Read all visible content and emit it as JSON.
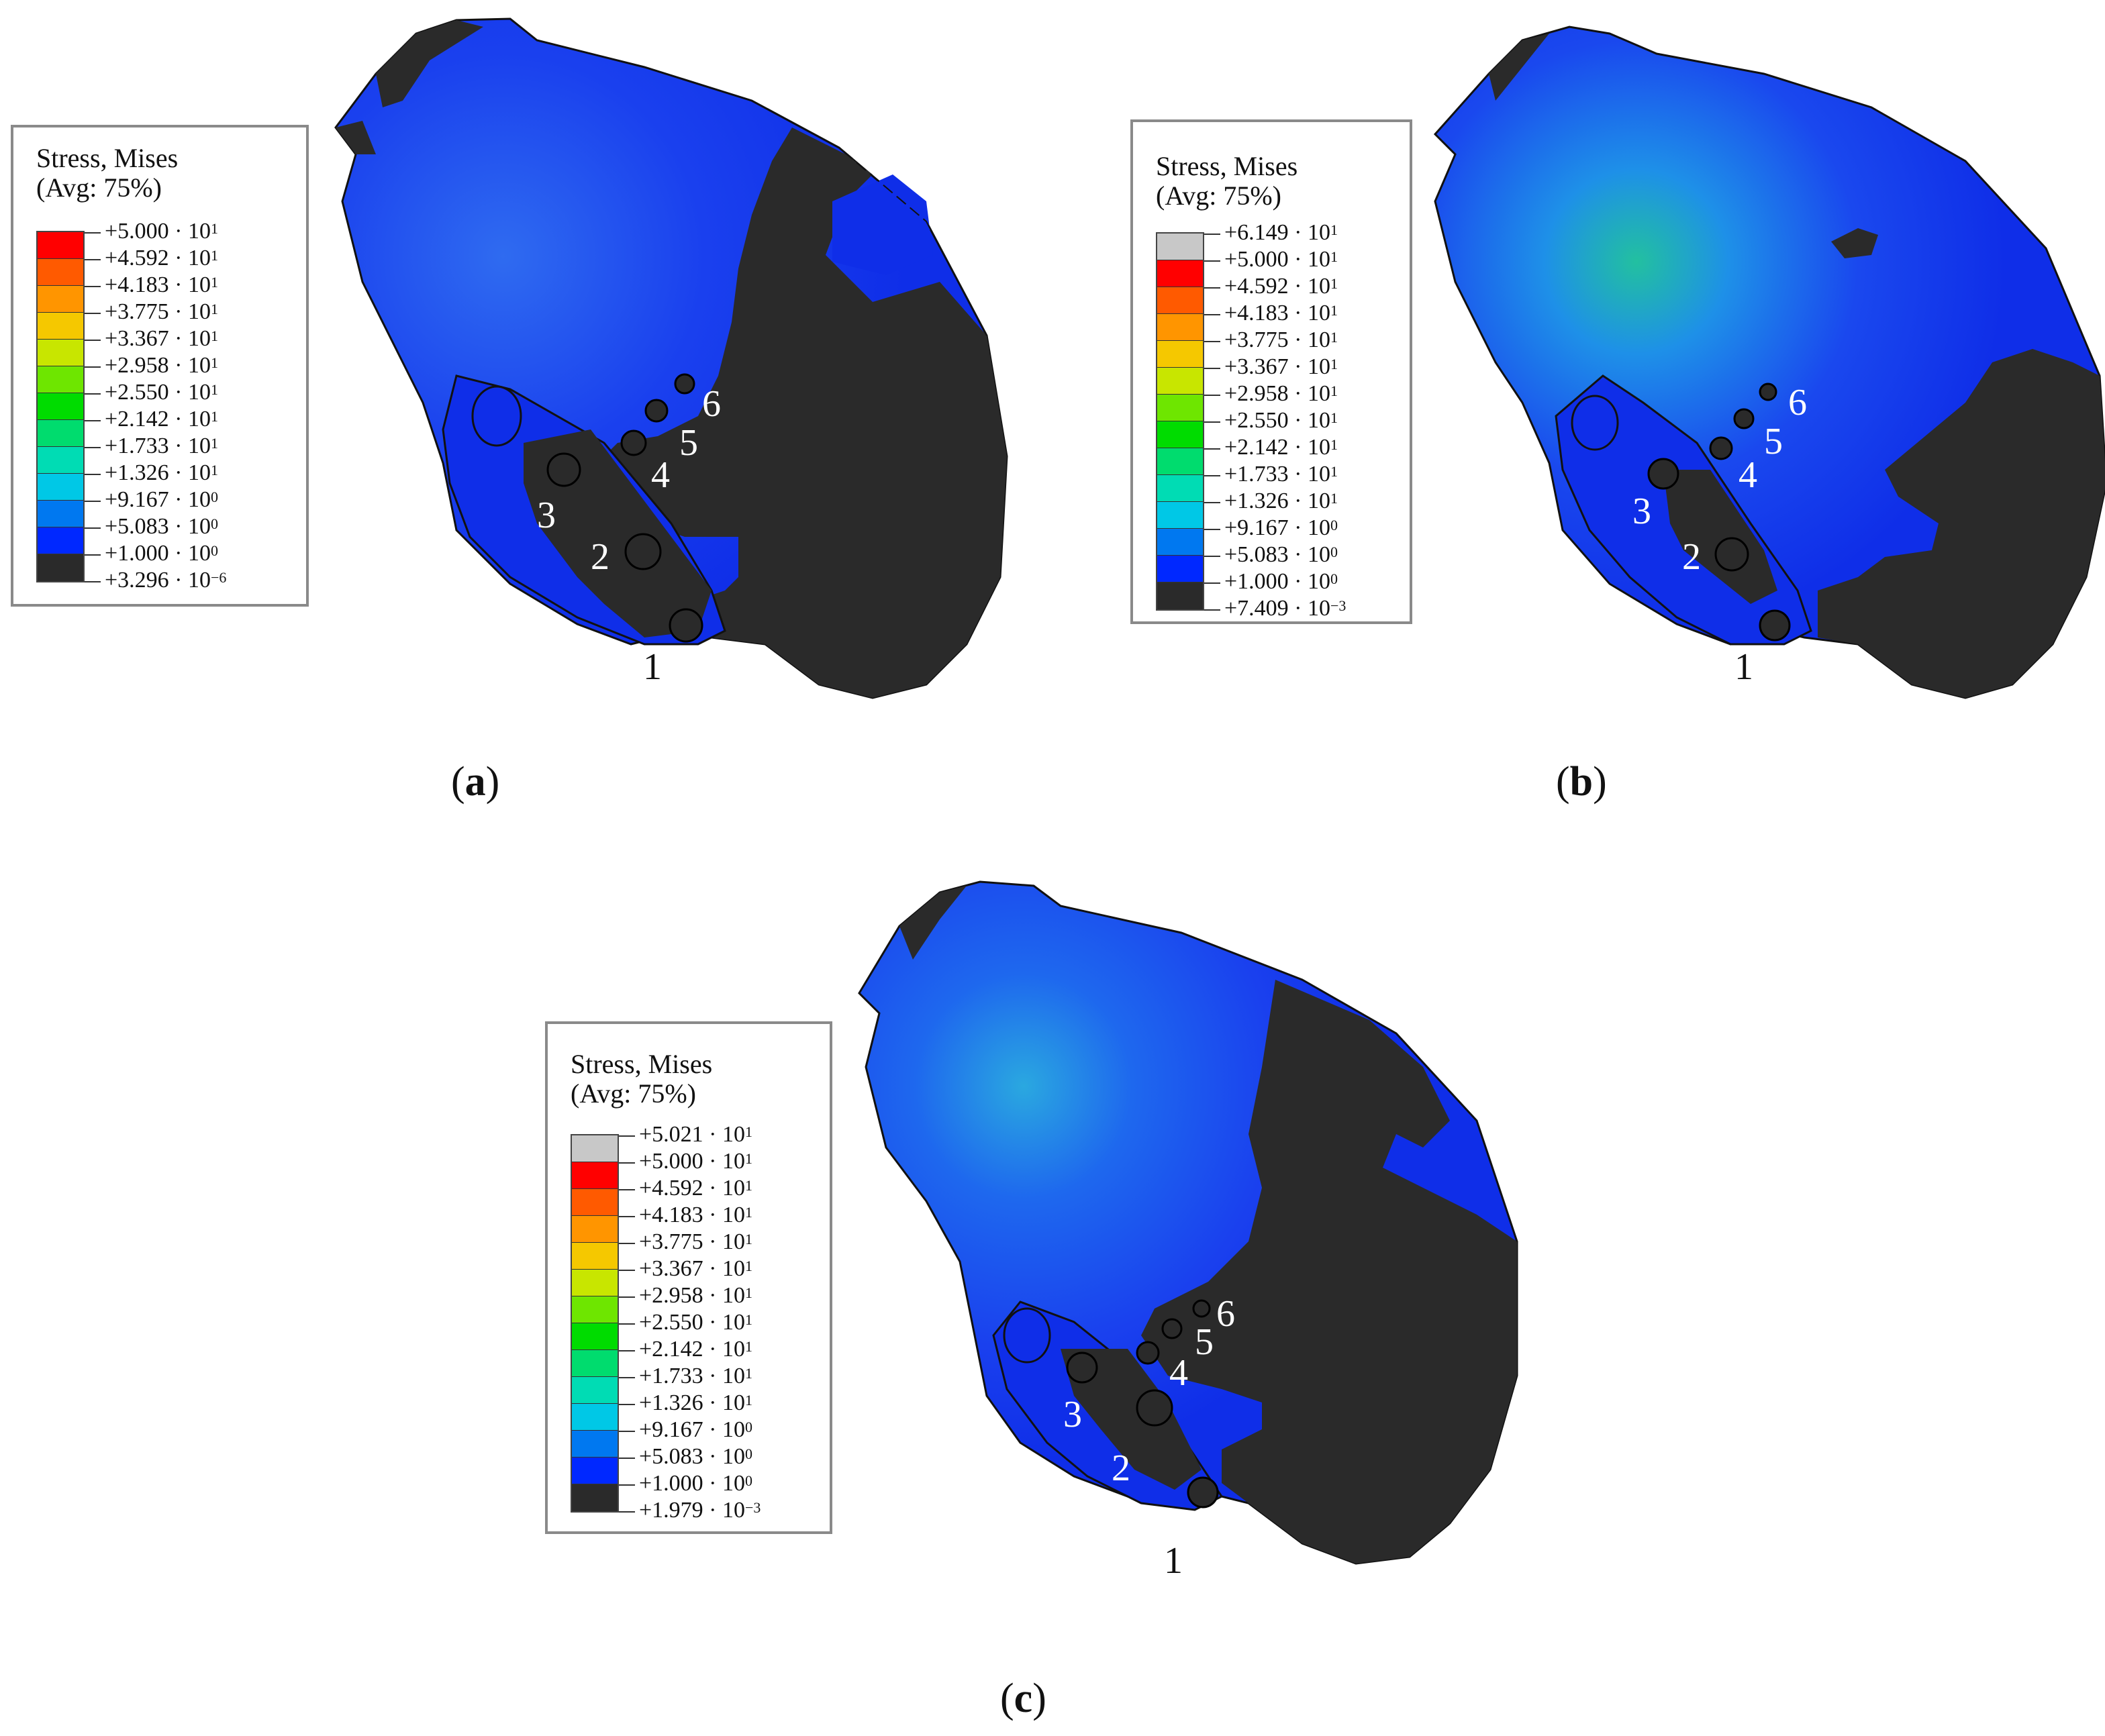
{
  "panels": [
    {
      "id": "a",
      "label_open": "(",
      "label_letter": "a",
      "label_close": ")",
      "legend": {
        "title_line1": "Stress, Mises",
        "title_line2": "(Avg: 75%)",
        "ticks": [
          {
            "mantissa": "+5.000 · 10",
            "exp": "1"
          },
          {
            "mantissa": "+4.592 · 10",
            "exp": "1"
          },
          {
            "mantissa": "+4.183 · 10",
            "exp": "1"
          },
          {
            "mantissa": "+3.775 · 10",
            "exp": "1"
          },
          {
            "mantissa": "+3.367 · 10",
            "exp": "1"
          },
          {
            "mantissa": "+2.958 · 10",
            "exp": "1"
          },
          {
            "mantissa": "+2.550 · 10",
            "exp": "1"
          },
          {
            "mantissa": "+2.142 · 10",
            "exp": "1"
          },
          {
            "mantissa": "+1.733 · 10",
            "exp": "1"
          },
          {
            "mantissa": "+1.326 · 10",
            "exp": "1"
          },
          {
            "mantissa": "+9.167 · 10",
            "exp": "0"
          },
          {
            "mantissa": "+5.083 · 10",
            "exp": "0"
          },
          {
            "mantissa": "+1.000 · 10",
            "exp": "0"
          },
          {
            "mantissa": "+3.296 · 10",
            "exp": "−6"
          }
        ],
        "colors": [
          "#ff0000",
          "#ff5a00",
          "#ff9500",
          "#f5c800",
          "#c8e600",
          "#6ee600",
          "#00dc00",
          "#00dc6e",
          "#00dcb4",
          "#00c8e6",
          "#0078f0",
          "#0028ff",
          "#2a2a2a"
        ]
      },
      "hole_labels": [
        "1",
        "2",
        "3",
        "4",
        "5",
        "6"
      ]
    },
    {
      "id": "b",
      "label_open": "(",
      "label_letter": "b",
      "label_close": ")",
      "legend": {
        "title_line1": "Stress, Mises",
        "title_line2": "(Avg: 75%)",
        "ticks": [
          {
            "mantissa": "+6.149 · 10",
            "exp": "1"
          },
          {
            "mantissa": "+5.000 · 10",
            "exp": "1"
          },
          {
            "mantissa": "+4.592 · 10",
            "exp": "1"
          },
          {
            "mantissa": "+4.183 · 10",
            "exp": "1"
          },
          {
            "mantissa": "+3.775 · 10",
            "exp": "1"
          },
          {
            "mantissa": "+3.367 · 10",
            "exp": "1"
          },
          {
            "mantissa": "+2.958 · 10",
            "exp": "1"
          },
          {
            "mantissa": "+2.550 · 10",
            "exp": "1"
          },
          {
            "mantissa": "+2.142 · 10",
            "exp": "1"
          },
          {
            "mantissa": "+1.733 · 10",
            "exp": "1"
          },
          {
            "mantissa": "+1.326 · 10",
            "exp": "1"
          },
          {
            "mantissa": "+9.167 · 10",
            "exp": "0"
          },
          {
            "mantissa": "+5.083 · 10",
            "exp": "0"
          },
          {
            "mantissa": "+1.000 · 10",
            "exp": "0"
          },
          {
            "mantissa": "+7.409 · 10",
            "exp": "−3"
          }
        ],
        "colors": [
          "#c8c8c8",
          "#ff0000",
          "#ff5a00",
          "#ff9500",
          "#f5c800",
          "#c8e600",
          "#6ee600",
          "#00dc00",
          "#00dc6e",
          "#00dcb4",
          "#00c8e6",
          "#0078f0",
          "#0028ff",
          "#2a2a2a"
        ]
      },
      "hole_labels": [
        "1",
        "2",
        "3",
        "4",
        "5",
        "6"
      ]
    },
    {
      "id": "c",
      "label_open": "(",
      "label_letter": "c",
      "label_close": ")",
      "legend": {
        "title_line1": "Stress, Mises",
        "title_line2": "(Avg: 75%)",
        "ticks": [
          {
            "mantissa": "+5.021 · 10",
            "exp": "1"
          },
          {
            "mantissa": "+5.000 · 10",
            "exp": "1"
          },
          {
            "mantissa": "+4.592 · 10",
            "exp": "1"
          },
          {
            "mantissa": "+4.183 · 10",
            "exp": "1"
          },
          {
            "mantissa": "+3.775 · 10",
            "exp": "1"
          },
          {
            "mantissa": "+3.367 · 10",
            "exp": "1"
          },
          {
            "mantissa": "+2.958 · 10",
            "exp": "1"
          },
          {
            "mantissa": "+2.550 · 10",
            "exp": "1"
          },
          {
            "mantissa": "+2.142 · 10",
            "exp": "1"
          },
          {
            "mantissa": "+1.733 · 10",
            "exp": "1"
          },
          {
            "mantissa": "+1.326 · 10",
            "exp": "1"
          },
          {
            "mantissa": "+9.167 · 10",
            "exp": "0"
          },
          {
            "mantissa": "+5.083 · 10",
            "exp": "0"
          },
          {
            "mantissa": "+1.000 · 10",
            "exp": "0"
          },
          {
            "mantissa": "+1.979 · 10",
            "exp": "−3"
          }
        ],
        "colors": [
          "#c8c8c8",
          "#ff0000",
          "#ff5a00",
          "#ff9500",
          "#f5c800",
          "#c8e600",
          "#6ee600",
          "#00dc00",
          "#00dc6e",
          "#00dcb4",
          "#00c8e6",
          "#0078f0",
          "#0028ff",
          "#2a2a2a"
        ]
      },
      "hole_labels": [
        "1",
        "2",
        "3",
        "4",
        "5",
        "6"
      ]
    }
  ]
}
